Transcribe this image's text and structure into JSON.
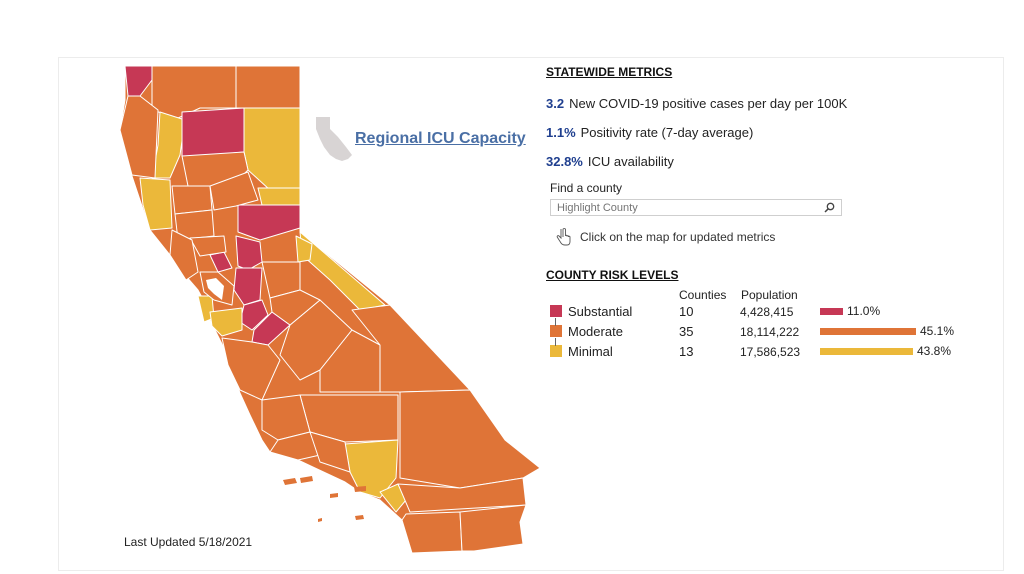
{
  "colors": {
    "substantial": "#c63855",
    "moderate": "#df7437",
    "minimal": "#ebb83a",
    "link": "#4a6fa5",
    "metric_value": "#1f3f8f",
    "mini_map": "#d8d4d4"
  },
  "icu_link_label": "Regional ICU Capacity",
  "statewide": {
    "heading": "STATEWIDE METRICS",
    "metrics": [
      {
        "value": "3.2",
        "text": "New COVID-19 positive cases per day per 100K"
      },
      {
        "value": "1.1%",
        "text": "Positivity rate (7-day average)"
      },
      {
        "value": "32.8%",
        "text": "ICU availability"
      }
    ]
  },
  "search": {
    "label": "Find a county",
    "placeholder": "Highlight County",
    "icon": "search-icon"
  },
  "hint": {
    "icon": "pointer-hand-icon",
    "text": "Click on the map for updated metrics"
  },
  "risk": {
    "heading": "COUNTY RISK LEVELS",
    "columns": {
      "counties": "Counties",
      "population": "Population"
    },
    "levels": [
      {
        "key": "substantial",
        "label": "Substantial",
        "counties": "10",
        "population": "4,428,415",
        "percent_label": "11.0%",
        "share": 0.11
      },
      {
        "key": "moderate",
        "label": "Moderate",
        "counties": "35",
        "population": "18,114,222",
        "percent_label": "45.1%",
        "share": 0.451
      },
      {
        "key": "minimal",
        "label": "Minimal",
        "counties": "13",
        "population": "17,586,523",
        "percent_label": "43.8%",
        "share": 0.438
      }
    ]
  },
  "last_updated": "Last Updated 5/18/2021"
}
